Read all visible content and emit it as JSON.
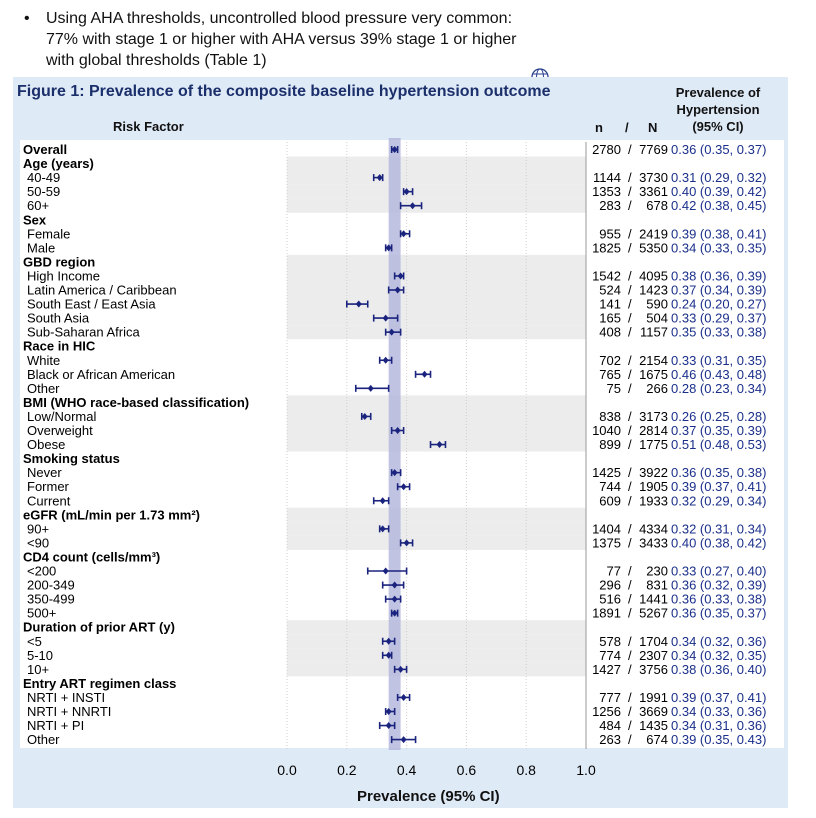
{
  "bullet": {
    "symbol": "•",
    "text": "Using AHA thresholds, uncontrolled blood pressure very common: 77% with stage 1 or higher with AHA versus 39% stage 1 or higher with global thresholds (Table 1)"
  },
  "figure": {
    "title": "Figure 1: Prevalence of the composite baseline hypertension outcome",
    "col_risk_factor": "Risk Factor",
    "col_n": "n",
    "col_slash": "/",
    "col_N": "N",
    "col_prev_line1": "Prevalence of",
    "col_prev_line2": "Hypertension",
    "col_prev_line3": "(95% CI)",
    "xaxis_label": "Prevalence (95% CI)"
  },
  "colors": {
    "marker": "#1a237e",
    "ci_text": "#1a2f8a",
    "band": "#b5b8dc",
    "shade": "#ececec",
    "panel": "#dfeaf7",
    "title": "#1b2f6b"
  },
  "chart_data": {
    "type": "forest",
    "xlabel": "Prevalence (95% CI)",
    "xlim": [
      0.0,
      1.0
    ],
    "xticks": [
      "0.0",
      "0.2",
      "0.4",
      "0.6",
      "0.8",
      "1.0"
    ],
    "reference_band": [
      0.34,
      0.38
    ],
    "rows": [
      {
        "label": "Overall",
        "header": true,
        "shade": false,
        "n": "2780",
        "N": "7769",
        "est": 0.36,
        "lo": 0.35,
        "hi": 0.37,
        "ci_text": "0.36 (0.35, 0.37)"
      },
      {
        "label": "Age (years)",
        "header": true,
        "shade": true
      },
      {
        "label": "40-49",
        "shade": true,
        "n": "1144",
        "N": "3730",
        "est": 0.31,
        "lo": 0.29,
        "hi": 0.32,
        "ci_text": "0.31 (0.29, 0.32)"
      },
      {
        "label": "50-59",
        "shade": true,
        "n": "1353",
        "N": "3361",
        "est": 0.4,
        "lo": 0.39,
        "hi": 0.42,
        "ci_text": "0.40 (0.39, 0.42)"
      },
      {
        "label": "60+",
        "shade": true,
        "n": "283",
        "N": "678",
        "est": 0.42,
        "lo": 0.38,
        "hi": 0.45,
        "ci_text": "0.42 (0.38, 0.45)"
      },
      {
        "label": "Sex",
        "header": true,
        "shade": false
      },
      {
        "label": "Female",
        "shade": false,
        "n": "955",
        "N": "2419",
        "est": 0.39,
        "lo": 0.38,
        "hi": 0.41,
        "ci_text": "0.39 (0.38, 0.41)"
      },
      {
        "label": "Male",
        "shade": false,
        "n": "1825",
        "N": "5350",
        "est": 0.34,
        "lo": 0.33,
        "hi": 0.35,
        "ci_text": "0.34 (0.33, 0.35)"
      },
      {
        "label": "GBD region",
        "header": true,
        "shade": true
      },
      {
        "label": "High Income",
        "shade": true,
        "n": "1542",
        "N": "4095",
        "est": 0.38,
        "lo": 0.36,
        "hi": 0.39,
        "ci_text": "0.38 (0.36, 0.39)"
      },
      {
        "label": "Latin America / Caribbean",
        "shade": true,
        "n": "524",
        "N": "1423",
        "est": 0.37,
        "lo": 0.34,
        "hi": 0.39,
        "ci_text": "0.37 (0.34, 0.39)"
      },
      {
        "label": "South East / East Asia",
        "shade": true,
        "n": "141",
        "N": "590",
        "est": 0.24,
        "lo": 0.2,
        "hi": 0.27,
        "ci_text": "0.24 (0.20, 0.27)"
      },
      {
        "label": "South Asia",
        "shade": true,
        "n": "165",
        "N": "504",
        "est": 0.33,
        "lo": 0.29,
        "hi": 0.37,
        "ci_text": "0.33 (0.29, 0.37)"
      },
      {
        "label": "Sub-Saharan Africa",
        "shade": true,
        "n": "408",
        "N": "1157",
        "est": 0.35,
        "lo": 0.33,
        "hi": 0.38,
        "ci_text": "0.35 (0.33, 0.38)"
      },
      {
        "label": "Race in HIC",
        "header": true,
        "shade": false
      },
      {
        "label": "White",
        "shade": false,
        "n": "702",
        "N": "2154",
        "est": 0.33,
        "lo": 0.31,
        "hi": 0.35,
        "ci_text": "0.33 (0.31, 0.35)"
      },
      {
        "label": "Black or African American",
        "shade": false,
        "n": "765",
        "N": "1675",
        "est": 0.46,
        "lo": 0.43,
        "hi": 0.48,
        "ci_text": "0.46 (0.43, 0.48)"
      },
      {
        "label": "Other",
        "shade": false,
        "n": "75",
        "N": "266",
        "est": 0.28,
        "lo": 0.23,
        "hi": 0.34,
        "ci_text": "0.28 (0.23, 0.34)"
      },
      {
        "label": "BMI (WHO race-based classification)",
        "header": true,
        "shade": true
      },
      {
        "label": "Low/Normal",
        "shade": true,
        "n": "838",
        "N": "3173",
        "est": 0.26,
        "lo": 0.25,
        "hi": 0.28,
        "ci_text": "0.26 (0.25, 0.28)"
      },
      {
        "label": "Overweight",
        "shade": true,
        "n": "1040",
        "N": "2814",
        "est": 0.37,
        "lo": 0.35,
        "hi": 0.39,
        "ci_text": "0.37 (0.35, 0.39)"
      },
      {
        "label": "Obese",
        "shade": true,
        "n": "899",
        "N": "1775",
        "est": 0.51,
        "lo": 0.48,
        "hi": 0.53,
        "ci_text": "0.51 (0.48, 0.53)"
      },
      {
        "label": "Smoking status",
        "header": true,
        "shade": false
      },
      {
        "label": "Never",
        "shade": false,
        "n": "1425",
        "N": "3922",
        "est": 0.36,
        "lo": 0.35,
        "hi": 0.38,
        "ci_text": "0.36 (0.35, 0.38)"
      },
      {
        "label": "Former",
        "shade": false,
        "n": "744",
        "N": "1905",
        "est": 0.39,
        "lo": 0.37,
        "hi": 0.41,
        "ci_text": "0.39 (0.37, 0.41)"
      },
      {
        "label": "Current",
        "shade": false,
        "n": "609",
        "N": "1933",
        "est": 0.32,
        "lo": 0.29,
        "hi": 0.34,
        "ci_text": "0.32 (0.29, 0.34)"
      },
      {
        "label": "eGFR (mL/min per 1.73 mm²)",
        "header": true,
        "shade": true
      },
      {
        "label": "90+",
        "shade": true,
        "n": "1404",
        "N": "4334",
        "est": 0.32,
        "lo": 0.31,
        "hi": 0.34,
        "ci_text": "0.32 (0.31, 0.34)"
      },
      {
        "label": "<90",
        "shade": true,
        "n": "1375",
        "N": "3433",
        "est": 0.4,
        "lo": 0.38,
        "hi": 0.42,
        "ci_text": "0.40 (0.38, 0.42)"
      },
      {
        "label": "CD4 count (cells/mm³)",
        "header": true,
        "shade": false
      },
      {
        "label": "<200",
        "shade": false,
        "n": "77",
        "N": "230",
        "est": 0.33,
        "lo": 0.27,
        "hi": 0.4,
        "ci_text": "0.33 (0.27, 0.40)"
      },
      {
        "label": "200-349",
        "shade": false,
        "n": "296",
        "N": "831",
        "est": 0.36,
        "lo": 0.32,
        "hi": 0.39,
        "ci_text": "0.36 (0.32, 0.39)"
      },
      {
        "label": "350-499",
        "shade": false,
        "n": "516",
        "N": "1441",
        "est": 0.36,
        "lo": 0.33,
        "hi": 0.38,
        "ci_text": "0.36 (0.33, 0.38)"
      },
      {
        "label": "500+",
        "shade": false,
        "n": "1891",
        "N": "5267",
        "est": 0.36,
        "lo": 0.35,
        "hi": 0.37,
        "ci_text": "0.36 (0.35, 0.37)"
      },
      {
        "label": "Duration of prior ART (y)",
        "header": true,
        "shade": true
      },
      {
        "label": "<5",
        "shade": true,
        "n": "578",
        "N": "1704",
        "est": 0.34,
        "lo": 0.32,
        "hi": 0.36,
        "ci_text": "0.34 (0.32, 0.36)"
      },
      {
        "label": "5-10",
        "shade": true,
        "n": "774",
        "N": "2307",
        "est": 0.34,
        "lo": 0.32,
        "hi": 0.35,
        "ci_text": "0.34 (0.32, 0.35)"
      },
      {
        "label": "10+",
        "shade": true,
        "n": "1427",
        "N": "3756",
        "est": 0.38,
        "lo": 0.36,
        "hi": 0.4,
        "ci_text": "0.38 (0.36, 0.40)"
      },
      {
        "label": "Entry ART regimen class",
        "header": true,
        "shade": false
      },
      {
        "label": "NRTI + INSTI",
        "shade": false,
        "n": "777",
        "N": "1991",
        "est": 0.39,
        "lo": 0.37,
        "hi": 0.41,
        "ci_text": "0.39 (0.37, 0.41)"
      },
      {
        "label": "NRTI + NNRTI",
        "shade": false,
        "n": "1256",
        "N": "3669",
        "est": 0.34,
        "lo": 0.33,
        "hi": 0.36,
        "ci_text": "0.34 (0.33, 0.36)"
      },
      {
        "label": "NRTI + PI",
        "shade": false,
        "n": "484",
        "N": "1435",
        "est": 0.34,
        "lo": 0.31,
        "hi": 0.36,
        "ci_text": "0.34 (0.31, 0.36)"
      },
      {
        "label": "Other",
        "shade": false,
        "n": "263",
        "N": "674",
        "est": 0.39,
        "lo": 0.35,
        "hi": 0.43,
        "ci_text": "0.39 (0.35, 0.43)"
      }
    ]
  }
}
